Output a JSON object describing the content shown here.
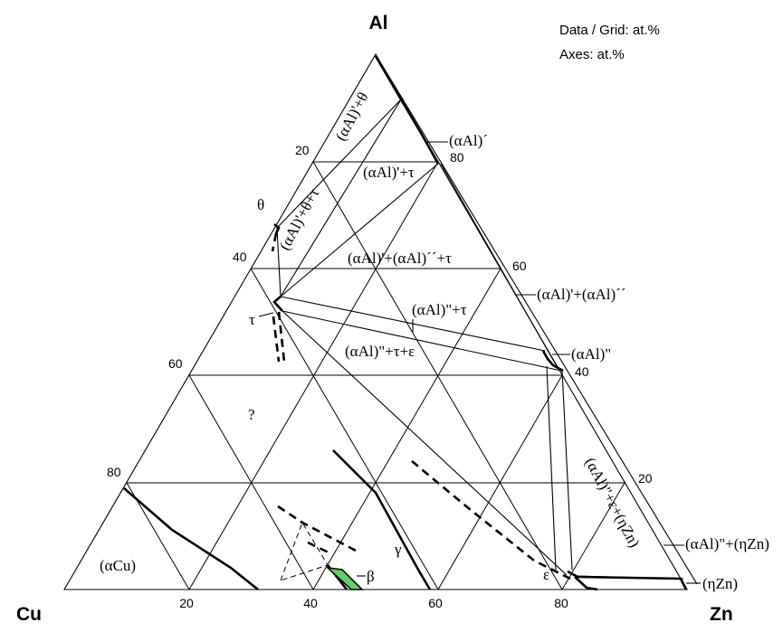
{
  "info": {
    "data_grid": "Data / Grid: at.%",
    "axes": "Axes: at.%"
  },
  "corners": {
    "top": "Al",
    "left": "Cu",
    "right": "Zn"
  },
  "ticks": {
    "left_edge": [
      "20",
      "40",
      "60",
      "80"
    ],
    "right_edge": [
      "80",
      "60",
      "40",
      "20"
    ],
    "bottom_edge": [
      "20",
      "40",
      "60",
      "80"
    ]
  },
  "phases": {
    "al_theta": "(αAl)'+θ",
    "al_prime": "(αAl)´",
    "al_tau": "(αAl)'+τ",
    "theta": "θ",
    "al_theta_tau": "(αAl)'+θ+τ",
    "al_al_tau": "(αAl)'+(αAl)´´+τ",
    "al_al": "(αAl)'+(αAl)´´",
    "al2_tau": "(αAl)\"+τ",
    "tau": "τ",
    "al2_tau_eps": "(αAl)\"+τ+ε",
    "al2": "(αAl)\"",
    "question": "?",
    "al2_eps_eta": "(αAl)\"+ε+(ηZn)",
    "al2_eta": "(αAl)\"+(ηZn)",
    "gamma": "γ",
    "alpha_cu": "(αCu)",
    "beta": "β",
    "epsilon": "ε",
    "eta": "(ηZn)"
  },
  "colors": {
    "beta_fill": "#66cc66",
    "line": "#000000"
  }
}
